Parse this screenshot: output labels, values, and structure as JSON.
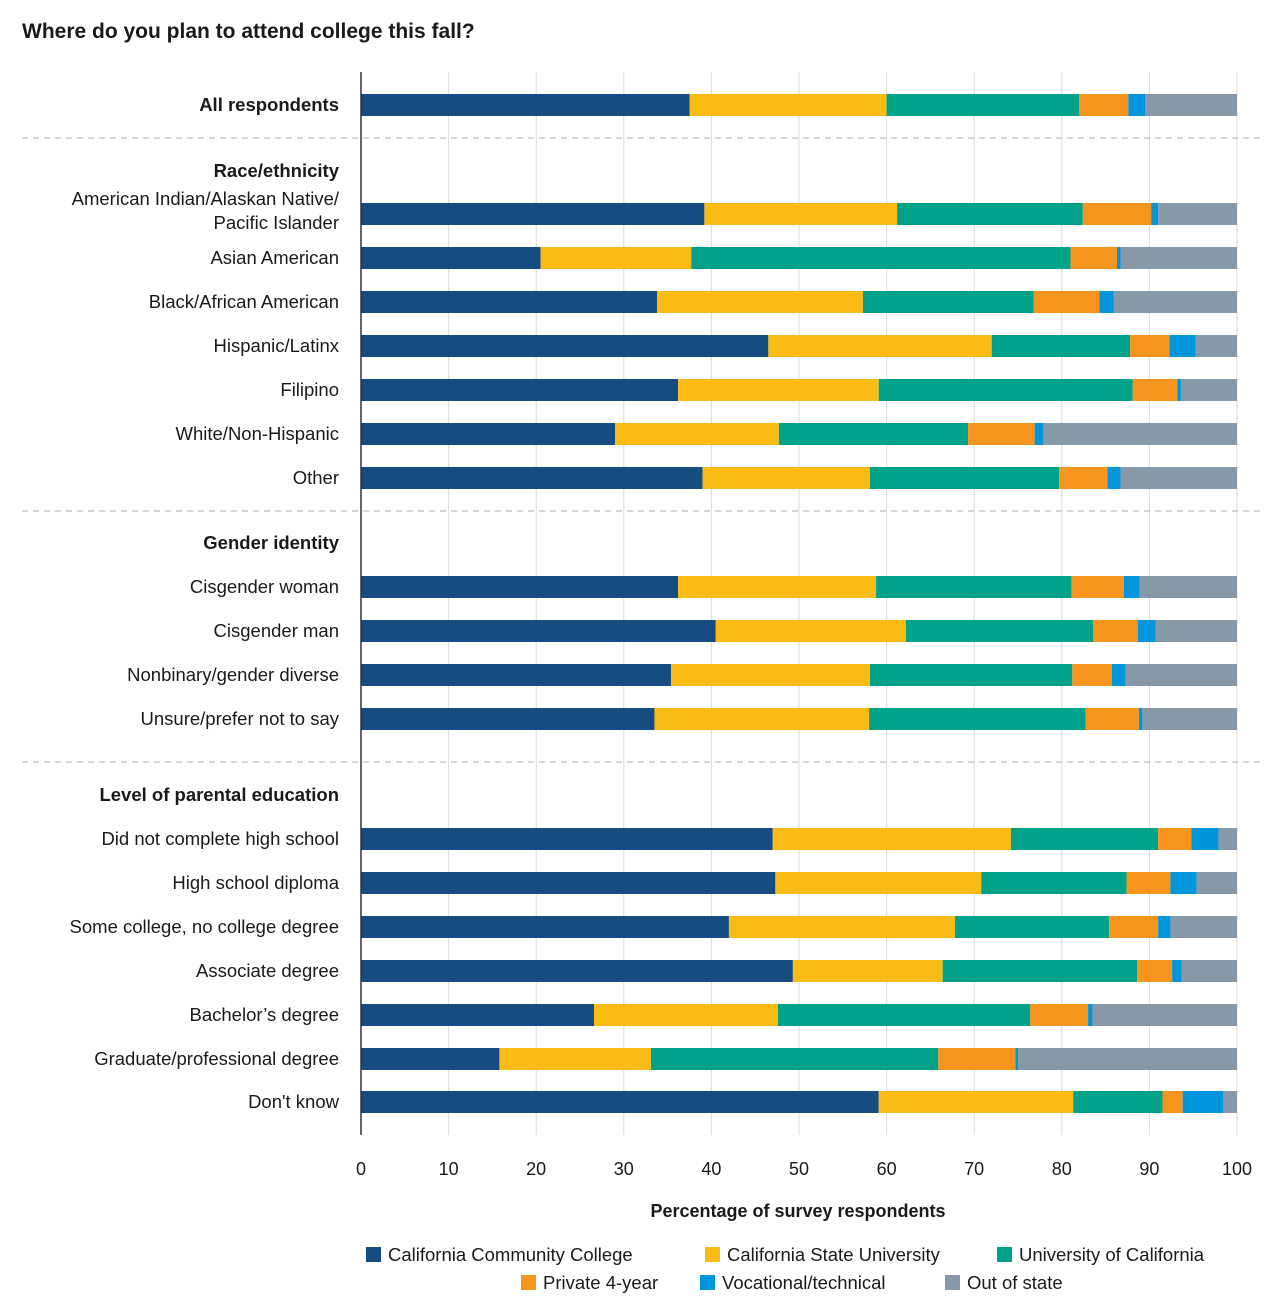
{
  "chart_data": {
    "type": "stacked-bar-horizontal",
    "title": "Where do you plan to attend college this fall?",
    "xlabel": "Percentage of survey respondents",
    "ylabel": "",
    "xlim": [
      0,
      100
    ],
    "xticks": [
      0,
      10,
      20,
      30,
      40,
      50,
      60,
      70,
      80,
      90,
      100
    ],
    "grid": true,
    "legend_position": "bottom",
    "series": [
      {
        "name": "California Community College",
        "color": "#164c82"
      },
      {
        "name": "California State University",
        "color": "#fbbb15"
      },
      {
        "name": "University of California",
        "color": "#00a38a"
      },
      {
        "name": "Private 4-year",
        "color": "#f7941e"
      },
      {
        "name": "Vocational/technical",
        "color": "#0195db"
      },
      {
        "name": "Out of state",
        "color": "#8798a8"
      }
    ],
    "groups": [
      {
        "header": "",
        "rows": [
          {
            "label": [
              "All respondents"
            ],
            "bold": true,
            "values": [
              37.5,
              22.5,
              22,
              5.6,
              1.9,
              10.5
            ]
          }
        ]
      },
      {
        "header": "Race/ethnicity",
        "rows": [
          {
            "label": [
              "American Indian/Alaskan Native/",
              "Pacific Islander"
            ],
            "values": [
              39.2,
              22,
              21.2,
              7.8,
              0.8,
              9
            ]
          },
          {
            "label": [
              "Asian American"
            ],
            "values": [
              20.5,
              17.2,
              43.3,
              5.3,
              0.4,
              13.3
            ]
          },
          {
            "label": [
              "Black/African American"
            ],
            "values": [
              33.8,
              23.5,
              19.5,
              7.5,
              1.6,
              14.1
            ]
          },
          {
            "label": [
              "Hispanic/Latinx"
            ],
            "values": [
              46.5,
              25.5,
              15.8,
              4.5,
              3,
              4.7
            ]
          },
          {
            "label": [
              "Filipino"
            ],
            "values": [
              36.2,
              22.9,
              29,
              5.1,
              0.4,
              6.4
            ]
          },
          {
            "label": [
              "White/Non-Hispanic"
            ],
            "values": [
              29,
              18.7,
              21.6,
              7.6,
              1,
              22.1
            ]
          },
          {
            "label": [
              "Other"
            ],
            "values": [
              39,
              19.1,
              21.6,
              5.5,
              1.5,
              13.3
            ]
          }
        ]
      },
      {
        "header": "Gender identity",
        "rows": [
          {
            "label": [
              "Cisgender woman"
            ],
            "values": [
              36.2,
              22.6,
              22.3,
              6,
              1.8,
              11.1
            ]
          },
          {
            "label": [
              "Cisgender man"
            ],
            "values": [
              40.5,
              21.7,
              21.4,
              5.1,
              2,
              9.3
            ]
          },
          {
            "label": [
              "Nonbinary/gender diverse"
            ],
            "values": [
              35.4,
              22.7,
              23.1,
              4.5,
              1.6,
              12.7
            ]
          },
          {
            "label": [
              "Unsure/prefer not to say"
            ],
            "values": [
              33.5,
              24.5,
              24.7,
              6.1,
              0.4,
              10.8
            ]
          }
        ]
      },
      {
        "header": "Level of parental education",
        "rows": [
          {
            "label": [
              "Did not complete high school"
            ],
            "values": [
              47,
              27.2,
              16.8,
              3.8,
              3.1,
              2.1
            ]
          },
          {
            "label": [
              "High school diploma"
            ],
            "values": [
              47.3,
              23.5,
              16.6,
              5,
              3,
              4.6
            ]
          },
          {
            "label": [
              "Some college, no college degree"
            ],
            "values": [
              42,
              25.8,
              17.6,
              5.6,
              1.4,
              7.6
            ]
          },
          {
            "label": [
              "Associate degree"
            ],
            "values": [
              49.3,
              17.1,
              22.2,
              4,
              1.1,
              6.3
            ]
          },
          {
            "label": [
              "Bachelor’s degree"
            ],
            "values": [
              26.6,
              21,
              28.8,
              6.6,
              0.5,
              16.5
            ]
          },
          {
            "label": [
              "Graduate/professional degree"
            ],
            "values": [
              15.8,
              17.3,
              32.8,
              8.8,
              0.3,
              25
            ]
          },
          {
            "label": [
              "Don't know"
            ],
            "values": [
              59.1,
              22.2,
              10.2,
              2.3,
              4.6,
              1.6
            ]
          }
        ]
      }
    ]
  }
}
